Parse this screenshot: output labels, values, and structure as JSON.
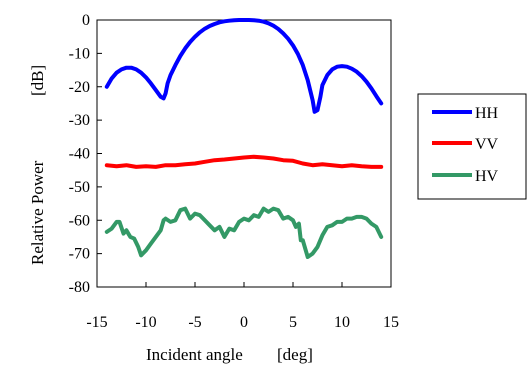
{
  "chart_data": {
    "type": "line",
    "xlabel": "Incident angle",
    "xunit": "[deg]",
    "ylabel": "Relative Power",
    "yunit": "[dB]",
    "xlim": [
      -15,
      15
    ],
    "ylim": [
      -80,
      0
    ],
    "xticks": [
      "-15",
      "-10",
      "-5",
      "0",
      "5",
      "10",
      "15"
    ],
    "yticks": [
      "0",
      "-10",
      "-20",
      "-30",
      "-40",
      "-50",
      "-60",
      "-70",
      "-80"
    ],
    "grid": false,
    "legend_position": "right",
    "series": [
      {
        "name": "HH",
        "color": "#0000ff",
        "x": [
          -14,
          -13.5,
          -13,
          -12.5,
          -12,
          -11.5,
          -11,
          -10.5,
          -10,
          -9.5,
          -9,
          -8.5,
          -8.2,
          -8,
          -7.8,
          -7.5,
          -7,
          -6.5,
          -6,
          -5.5,
          -5,
          -4.5,
          -4,
          -3.5,
          -3,
          -2.5,
          -2,
          -1.5,
          -1,
          -0.5,
          0,
          0.5,
          1,
          1.5,
          2,
          2.5,
          3,
          3.5,
          4,
          4.5,
          5,
          5.5,
          6,
          6.5,
          7,
          7.2,
          7.5,
          7.8,
          8,
          8.5,
          9,
          9.5,
          10,
          10.5,
          11,
          11.5,
          12,
          12.5,
          13,
          13.5,
          14
        ],
        "values": [
          -20,
          -17.5,
          -15.8,
          -14.8,
          -14.3,
          -14.3,
          -14.8,
          -15.8,
          -17.2,
          -19,
          -21,
          -23,
          -23.5,
          -22,
          -19,
          -16.5,
          -13.5,
          -10.8,
          -8.5,
          -6.6,
          -5,
          -3.7,
          -2.6,
          -1.8,
          -1.2,
          -0.7,
          -0.4,
          -0.2,
          -0.05,
          0,
          0,
          0,
          -0.05,
          -0.2,
          -0.5,
          -1,
          -1.7,
          -2.7,
          -4,
          -5.6,
          -7.6,
          -10.2,
          -13.5,
          -18,
          -24,
          -27.5,
          -27,
          -23,
          -19.5,
          -16.5,
          -14.8,
          -14,
          -13.8,
          -14,
          -14.6,
          -15.5,
          -16.8,
          -18.5,
          -20.5,
          -22.8,
          -25
        ]
      },
      {
        "name": "VV",
        "color": "#ff0000",
        "x": [
          -14,
          -13,
          -12,
          -11,
          -10,
          -9,
          -8,
          -7,
          -6,
          -5,
          -4,
          -3,
          -2,
          -1,
          0,
          1,
          2,
          3,
          4,
          5,
          6,
          7,
          8,
          9,
          10,
          11,
          12,
          13,
          14
        ],
        "values": [
          -43.5,
          -43.8,
          -43.5,
          -44,
          -43.8,
          -44,
          -43.5,
          -43.5,
          -43.2,
          -43,
          -42.5,
          -42,
          -41.8,
          -41.5,
          -41.2,
          -41,
          -41.2,
          -41.5,
          -42,
          -42.2,
          -43,
          -43.5,
          -43.2,
          -43.5,
          -43.8,
          -43.5,
          -43.8,
          -44,
          -44
        ]
      },
      {
        "name": "HV",
        "color": "#339966",
        "x": [
          -14,
          -13.5,
          -13,
          -12.7,
          -12.3,
          -12,
          -11.6,
          -11.2,
          -10.8,
          -10.5,
          -10,
          -9.5,
          -9,
          -8.5,
          -8.2,
          -8,
          -7.5,
          -7,
          -6.5,
          -6,
          -5.5,
          -5,
          -4.5,
          -4,
          -3.5,
          -3,
          -2.5,
          -2,
          -1.5,
          -1,
          -0.5,
          0,
          0.5,
          1,
          1.5,
          2,
          2.5,
          3,
          3.5,
          4,
          4.5,
          5,
          5.3,
          5.6,
          5.8,
          6,
          6.5,
          7,
          7.5,
          8,
          8.5,
          9,
          9.5,
          10,
          10.5,
          11,
          11.5,
          12,
          12.5,
          13,
          13.5,
          14
        ],
        "values": [
          -63.5,
          -62.5,
          -60.5,
          -60.5,
          -64,
          -63,
          -65,
          -65.5,
          -68,
          -70.5,
          -69,
          -67,
          -65,
          -63,
          -60,
          -59.5,
          -60.5,
          -60,
          -57,
          -56.5,
          -59.5,
          -58,
          -58.5,
          -60,
          -61.5,
          -63,
          -62,
          -65,
          -62.5,
          -63,
          -60.5,
          -59.5,
          -60,
          -58.5,
          -59,
          -56.5,
          -57.5,
          -56.5,
          -57,
          -59.5,
          -59,
          -60,
          -62,
          -61,
          -66,
          -66,
          -71,
          -70,
          -68,
          -64.5,
          -62,
          -61.5,
          -60.5,
          -60.5,
          -59.5,
          -59.5,
          -59,
          -59,
          -59.5,
          -61,
          -62,
          -65
        ]
      }
    ]
  }
}
